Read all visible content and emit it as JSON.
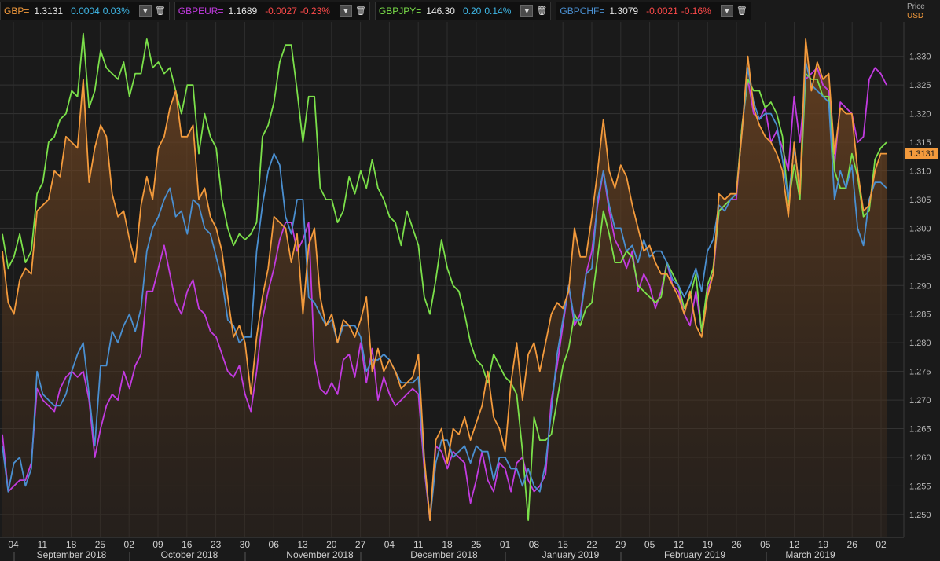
{
  "legend": [
    {
      "symbol": "GBP=",
      "last": "1.3131",
      "change": "0.0004",
      "pct": "0.03%",
      "color": "#f39a3c",
      "chg_color": "#3fb7e6"
    },
    {
      "symbol": "GBPEUR=",
      "last": "1.1689",
      "change": "-0.0027",
      "pct": "-0.23%",
      "color": "#c23be0",
      "chg_color": "#ff4a4a"
    },
    {
      "symbol": "GBPJPY=",
      "last": "146.30",
      "change": "0.20",
      "pct": "0.14%",
      "color": "#7be04a",
      "chg_color": "#3fb7e6"
    },
    {
      "symbol": "GBPCHF=",
      "last": "1.3079",
      "change": "-0.0021",
      "pct": "-0.16%",
      "color": "#4a8fd0",
      "chg_color": "#ff4a4a"
    }
  ],
  "axis_header": {
    "price": "Price",
    "unit": "USD"
  },
  "current_label": "1.3131",
  "colors": {
    "background": "#1a1a1a",
    "grid": "#333333",
    "gbp": "#f39a3c",
    "gbpeur": "#c23be0",
    "gbpjpy": "#7be04a",
    "gbpchf": "#4a8fd0"
  },
  "chart_data": {
    "type": "line",
    "ylim": [
      1.246,
      1.336
    ],
    "y_ticks": [
      "1.250",
      "1.255",
      "1.260",
      "1.265",
      "1.270",
      "1.275",
      "1.280",
      "1.285",
      "1.290",
      "1.295",
      "1.300",
      "1.305",
      "1.310",
      "1.315",
      "1.320",
      "1.325",
      "1.330"
    ],
    "x_ticks": [
      "04",
      "11",
      "18",
      "25",
      "02",
      "09",
      "16",
      "23",
      "30",
      "06",
      "13",
      "20",
      "27",
      "04",
      "11",
      "18",
      "25",
      "01",
      "08",
      "15",
      "22",
      "29",
      "05",
      "12",
      "19",
      "26",
      "05",
      "12",
      "19",
      "26",
      "02"
    ],
    "month_labels": [
      "September 2018",
      "October 2018",
      "November 2018",
      "December 2018",
      "January 2019",
      "February 2019",
      "March 2019"
    ],
    "series": [
      {
        "name": "GBP=",
        "color": "#f39a3c",
        "fill": true,
        "values": [
          1.296,
          1.287,
          1.285,
          1.291,
          1.293,
          1.292,
          1.303,
          1.304,
          1.305,
          1.31,
          1.309,
          1.316,
          1.315,
          1.314,
          1.326,
          1.308,
          1.314,
          1.318,
          1.316,
          1.306,
          1.302,
          1.303,
          1.298,
          1.294,
          1.304,
          1.309,
          1.305,
          1.314,
          1.316,
          1.321,
          1.324,
          1.316,
          1.316,
          1.318,
          1.305,
          1.307,
          1.302,
          1.3,
          1.296,
          1.288,
          1.281,
          1.283,
          1.28,
          1.271,
          1.281,
          1.288,
          1.293,
          1.302,
          1.301,
          1.3,
          1.294,
          1.299,
          1.285,
          1.297,
          1.3,
          1.288,
          1.283,
          1.285,
          1.28,
          1.284,
          1.283,
          1.281,
          1.284,
          1.288,
          1.275,
          1.279,
          1.275,
          1.277,
          1.275,
          1.272,
          1.273,
          1.274,
          1.278,
          1.26,
          1.249,
          1.263,
          1.265,
          1.259,
          1.265,
          1.264,
          1.267,
          1.263,
          1.266,
          1.269,
          1.275,
          1.267,
          1.265,
          1.261,
          1.273,
          1.28,
          1.27,
          1.278,
          1.28,
          1.275,
          1.28,
          1.285,
          1.287,
          1.286,
          1.289,
          1.3,
          1.295,
          1.295,
          1.302,
          1.31,
          1.319,
          1.31,
          1.307,
          1.311,
          1.309,
          1.304,
          1.3,
          1.296,
          1.297,
          1.294,
          1.292,
          1.292,
          1.29,
          1.288,
          1.285,
          1.289,
          1.283,
          1.281,
          1.288,
          1.292,
          1.306,
          1.305,
          1.306,
          1.306,
          1.317,
          1.33,
          1.321,
          1.318,
          1.316,
          1.315,
          1.313,
          1.31,
          1.302,
          1.315,
          1.306,
          1.333,
          1.324,
          1.329,
          1.326,
          1.327,
          1.313,
          1.321,
          1.32,
          1.32,
          1.31,
          1.303,
          1.304,
          1.31,
          1.313,
          1.313
        ]
      },
      {
        "name": "GBPEUR=",
        "color": "#c23be0",
        "fill": false,
        "values": [
          1.264,
          1.254,
          1.255,
          1.256,
          1.256,
          1.259,
          1.272,
          1.27,
          1.269,
          1.268,
          1.272,
          1.274,
          1.275,
          1.274,
          1.275,
          1.27,
          1.26,
          1.265,
          1.269,
          1.271,
          1.27,
          1.275,
          1.272,
          1.276,
          1.278,
          1.289,
          1.289,
          1.293,
          1.297,
          1.292,
          1.287,
          1.285,
          1.289,
          1.291,
          1.286,
          1.285,
          1.282,
          1.281,
          1.278,
          1.275,
          1.274,
          1.276,
          1.271,
          1.268,
          1.275,
          1.284,
          1.289,
          1.293,
          1.298,
          1.301,
          1.301,
          1.296,
          1.298,
          1.301,
          1.277,
          1.272,
          1.271,
          1.273,
          1.271,
          1.277,
          1.278,
          1.274,
          1.28,
          1.273,
          1.279,
          1.27,
          1.274,
          1.271,
          1.269,
          1.27,
          1.271,
          1.272,
          1.271,
          1.258,
          1.249,
          1.262,
          1.261,
          1.258,
          1.261,
          1.26,
          1.259,
          1.252,
          1.256,
          1.261,
          1.256,
          1.254,
          1.259,
          1.258,
          1.254,
          1.259,
          1.26,
          1.256,
          1.254,
          1.255,
          1.257,
          1.27,
          1.276,
          1.283,
          1.29,
          1.283,
          1.285,
          1.292,
          1.296,
          1.304,
          1.31,
          1.303,
          1.298,
          1.296,
          1.293,
          1.296,
          1.289,
          1.292,
          1.29,
          1.286,
          1.289,
          1.294,
          1.29,
          1.289,
          1.285,
          1.283,
          1.289,
          1.282,
          1.289,
          1.292,
          1.303,
          1.304,
          1.305,
          1.305,
          1.318,
          1.326,
          1.32,
          1.319,
          1.321,
          1.315,
          1.317,
          1.314,
          1.31,
          1.323,
          1.315,
          1.326,
          1.327,
          1.328,
          1.325,
          1.324,
          1.311,
          1.322,
          1.321,
          1.32,
          1.315,
          1.316,
          1.326,
          1.328,
          1.327,
          1.325
        ]
      },
      {
        "name": "GBPJPY=",
        "color": "#7be04a",
        "fill": false,
        "values": [
          1.299,
          1.293,
          1.295,
          1.299,
          1.294,
          1.296,
          1.306,
          1.308,
          1.315,
          1.316,
          1.319,
          1.32,
          1.324,
          1.323,
          1.334,
          1.321,
          1.324,
          1.331,
          1.328,
          1.327,
          1.326,
          1.329,
          1.323,
          1.327,
          1.327,
          1.333,
          1.328,
          1.329,
          1.327,
          1.328,
          1.324,
          1.32,
          1.325,
          1.325,
          1.313,
          1.32,
          1.316,
          1.314,
          1.305,
          1.3,
          1.297,
          1.299,
          1.298,
          1.299,
          1.301,
          1.316,
          1.318,
          1.322,
          1.329,
          1.332,
          1.332,
          1.324,
          1.315,
          1.323,
          1.323,
          1.307,
          1.305,
          1.305,
          1.301,
          1.303,
          1.309,
          1.306,
          1.31,
          1.307,
          1.312,
          1.307,
          1.305,
          1.302,
          1.301,
          1.297,
          1.303,
          1.3,
          1.297,
          1.288,
          1.285,
          1.291,
          1.298,
          1.293,
          1.29,
          1.289,
          1.285,
          1.28,
          1.277,
          1.276,
          1.273,
          1.278,
          1.276,
          1.274,
          1.273,
          1.271,
          1.261,
          1.249,
          1.267,
          1.263,
          1.263,
          1.264,
          1.27,
          1.276,
          1.279,
          1.285,
          1.283,
          1.286,
          1.287,
          1.295,
          1.303,
          1.299,
          1.294,
          1.294,
          1.296,
          1.295,
          1.29,
          1.289,
          1.288,
          1.287,
          1.288,
          1.294,
          1.292,
          1.29,
          1.286,
          1.288,
          1.292,
          1.282,
          1.29,
          1.293,
          1.303,
          1.304,
          1.305,
          1.306,
          1.318,
          1.326,
          1.324,
          1.324,
          1.321,
          1.322,
          1.32,
          1.316,
          1.304,
          1.311,
          1.305,
          1.327,
          1.326,
          1.326,
          1.323,
          1.323,
          1.31,
          1.307,
          1.307,
          1.313,
          1.309,
          1.302,
          1.303,
          1.312,
          1.314,
          1.315
        ]
      },
      {
        "name": "GBPCHF=",
        "color": "#4a8fd0",
        "fill": false,
        "values": [
          1.262,
          1.254,
          1.259,
          1.26,
          1.255,
          1.258,
          1.275,
          1.271,
          1.27,
          1.269,
          1.269,
          1.271,
          1.275,
          1.278,
          1.28,
          1.271,
          1.262,
          1.276,
          1.276,
          1.282,
          1.28,
          1.283,
          1.285,
          1.282,
          1.286,
          1.296,
          1.3,
          1.302,
          1.305,
          1.307,
          1.302,
          1.303,
          1.299,
          1.305,
          1.304,
          1.3,
          1.299,
          1.295,
          1.291,
          1.284,
          1.283,
          1.28,
          1.281,
          1.281,
          1.296,
          1.304,
          1.31,
          1.313,
          1.311,
          1.302,
          1.299,
          1.305,
          1.305,
          1.288,
          1.287,
          1.285,
          1.283,
          1.284,
          1.28,
          1.283,
          1.283,
          1.283,
          1.281,
          1.275,
          1.277,
          1.277,
          1.278,
          1.277,
          1.275,
          1.273,
          1.273,
          1.273,
          1.274,
          1.259,
          1.249,
          1.259,
          1.263,
          1.263,
          1.26,
          1.261,
          1.262,
          1.259,
          1.262,
          1.261,
          1.261,
          1.256,
          1.26,
          1.26,
          1.258,
          1.258,
          1.255,
          1.258,
          1.255,
          1.254,
          1.259,
          1.268,
          1.278,
          1.284,
          1.29,
          1.284,
          1.284,
          1.292,
          1.293,
          1.305,
          1.31,
          1.304,
          1.3,
          1.3,
          1.296,
          1.297,
          1.294,
          1.298,
          1.295,
          1.296,
          1.296,
          1.294,
          1.291,
          1.29,
          1.288,
          1.29,
          1.293,
          1.289,
          1.296,
          1.298,
          1.304,
          1.303,
          1.305,
          1.306,
          1.317,
          1.328,
          1.322,
          1.319,
          1.32,
          1.32,
          1.318,
          1.312,
          1.305,
          1.314,
          1.307,
          1.329,
          1.325,
          1.324,
          1.323,
          1.322,
          1.305,
          1.31,
          1.307,
          1.311,
          1.3,
          1.297,
          1.305,
          1.308,
          1.308,
          1.307
        ]
      }
    ]
  }
}
